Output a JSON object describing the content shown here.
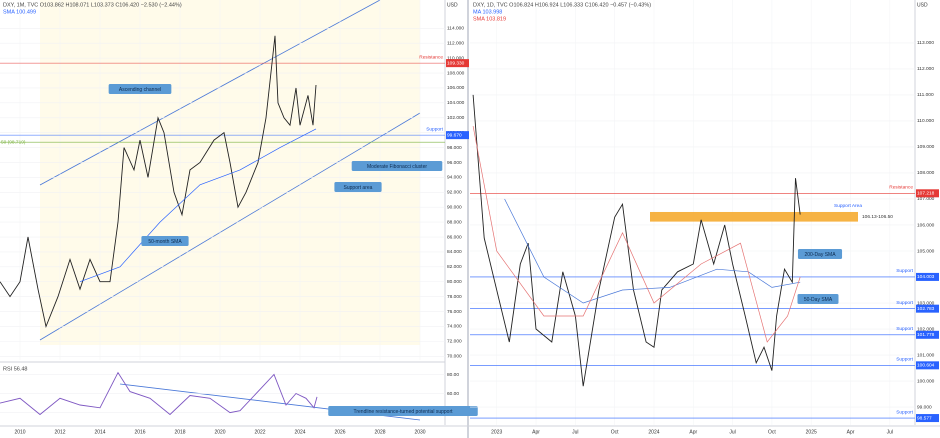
{
  "chart_data": [
    {
      "type": "line",
      "title": "DXY, 1M, TVC  O103.862 H108.071 L103.373 C106.420 −2.530 (−2.44%)",
      "subtitle": "SMA 100.499",
      "y_label": "USD",
      "xlim": [
        2009,
        2031.25
      ],
      "xticks": [
        2010,
        2012,
        2014,
        2016,
        2018,
        2020,
        2022,
        2024,
        2026,
        2028,
        2030
      ],
      "ylim": [
        69.5,
        117.8
      ],
      "yticks": [
        {
          "value": 70,
          "label": "70.000"
        },
        {
          "value": 72,
          "label": "72.000"
        },
        {
          "value": 74,
          "label": "74.000"
        },
        {
          "value": 76,
          "label": "76.000"
        },
        {
          "value": 78,
          "label": "78.000"
        },
        {
          "value": 80,
          "label": "80.000"
        },
        {
          "value": 82,
          "label": "82.000"
        },
        {
          "value": 84,
          "label": "84.000"
        },
        {
          "value": 86,
          "label": "86.000"
        },
        {
          "value": 88,
          "label": "88.000"
        },
        {
          "value": 90,
          "label": "90.000"
        },
        {
          "value": 92,
          "label": "92.000"
        },
        {
          "value": 94,
          "label": "94.000"
        },
        {
          "value": 96,
          "label": "96.000"
        },
        {
          "value": 98,
          "label": "98.000"
        },
        {
          "value": 100,
          "label": "100.000"
        },
        {
          "value": 102,
          "label": "102.000"
        },
        {
          "value": 104,
          "label": "104.000"
        },
        {
          "value": 106,
          "label": "106.000"
        },
        {
          "value": 108,
          "label": "108.000"
        },
        {
          "value": 110,
          "label": "110.000"
        },
        {
          "value": 112,
          "label": "112.000"
        },
        {
          "value": 114,
          "label": "114.000"
        }
      ],
      "series": [
        {
          "color": "#222222",
          "x": [
            2009.0,
            2009.5,
            2010.0,
            2010.4,
            2010.9,
            2011.3,
            2011.9,
            2012.5,
            2013.0,
            2013.5,
            2014.0,
            2014.5,
            2014.9,
            2015.2,
            2015.7,
            2016.0,
            2016.4,
            2016.9,
            2017.2,
            2017.7,
            2018.1,
            2018.5,
            2019.0,
            2019.7,
            2020.2,
            2020.5,
            2020.9,
            2021.3,
            2021.9,
            2022.3,
            2022.75,
            2022.9,
            2023.2,
            2023.5,
            2023.8,
            2024.0,
            2024.4,
            2024.65,
            2024.8
          ],
          "values": [
            80,
            78,
            80,
            86,
            79,
            74,
            78,
            83,
            79,
            83,
            80,
            80,
            88,
            98,
            95,
            99,
            94,
            102,
            100,
            92,
            89,
            95,
            96,
            99,
            100,
            96,
            90,
            92,
            96,
            102,
            113,
            104,
            102,
            101,
            106,
            101,
            105,
            101,
            106.4
          ]
        },
        {
          "color": "#2962ff",
          "x": [
            2013,
            2015,
            2017,
            2019,
            2021,
            2023,
            2024.8
          ],
          "values": [
            80,
            82,
            88,
            93,
            95,
            98,
            100.5
          ]
        }
      ],
      "levels": [
        {
          "value": 109.33,
          "label": "109.330",
          "name": "Resistance",
          "color": "#e53935"
        },
        {
          "value": 99.67,
          "label": "99.670",
          "name": "Support",
          "color": "#2962ff"
        }
      ],
      "fib_levels": [
        {
          "value": 98.719,
          "label": "50 (98.719)",
          "color": "#7cb342"
        }
      ],
      "annotations": [
        "Ascending channel",
        "Moderate Fibonacci cluster",
        "Support area",
        "50-month SMA"
      ]
    },
    {
      "type": "line",
      "title": "RSI 56.48",
      "xlim": [
        2009,
        2031.25
      ],
      "ylim": [
        27,
        91
      ],
      "yticks": [
        {
          "value": 40,
          "label": "40.00"
        },
        {
          "value": 60,
          "label": "60.00"
        },
        {
          "value": 80,
          "label": "80.00"
        }
      ],
      "series": [
        {
          "color": "#7e57c2",
          "x": [
            2009,
            2010,
            2011,
            2012,
            2013,
            2014,
            2014.9,
            2015.5,
            2016.5,
            2017.5,
            2018.5,
            2019.5,
            2020.5,
            2021,
            2022.7,
            2023.3,
            2023.8,
            2024.3,
            2024.7,
            2024.85
          ],
          "values": [
            50,
            55,
            38,
            55,
            48,
            45,
            82,
            62,
            55,
            38,
            58,
            55,
            40,
            42,
            80,
            48,
            60,
            55,
            45,
            56.48
          ]
        }
      ],
      "annotations": [
        "Trendline resistance-turned potential support"
      ]
    },
    {
      "type": "line",
      "title": "DXY, 1D, TVC  O106.824 H106.924 L106.333 C106.420 −0.457 (−0.43%)",
      "subtitle": "MA 103.998",
      "subtitle2": "SMA 103.819",
      "y_label": "USD",
      "xlim": [
        2022.83,
        2025.66
      ],
      "xticks": [
        2023,
        {
          "value": 2023.25,
          "label": "Apr"
        },
        {
          "value": 2023.5,
          "label": "Jul"
        },
        {
          "value": 2023.75,
          "label": "Oct"
        },
        2024,
        {
          "value": 2024.25,
          "label": "Apr"
        },
        {
          "value": 2024.5,
          "label": "Jul"
        },
        {
          "value": 2024.75,
          "label": "Oct"
        },
        2025,
        {
          "value": 2025.25,
          "label": "Apr"
        },
        {
          "value": 2025.5,
          "label": "Jul"
        }
      ],
      "ylim": [
        98.31,
        114.65
      ],
      "yticks": [
        {
          "value": 99,
          "label": "99.000"
        },
        {
          "value": 100,
          "label": "100.000"
        },
        {
          "value": 101,
          "label": "101.000"
        },
        {
          "value": 102,
          "label": "102.000"
        },
        {
          "value": 103,
          "label": "103.000"
        },
        {
          "value": 104,
          "label": "104.000"
        },
        {
          "value": 105,
          "label": "105.000"
        },
        {
          "value": 106,
          "label": "106.000"
        },
        {
          "value": 107,
          "label": "107.000"
        },
        {
          "value": 108,
          "label": "108.000"
        },
        {
          "value": 109,
          "label": "109.000"
        },
        {
          "value": 110,
          "label": "110.000"
        },
        {
          "value": 111,
          "label": "111.000"
        },
        {
          "value": 112,
          "label": "112.000"
        },
        {
          "value": 113,
          "label": "113.000"
        }
      ],
      "series": [
        {
          "color": "#222222",
          "x": [
            2022.85,
            2022.92,
            2023.0,
            2023.08,
            2023.15,
            2023.2,
            2023.25,
            2023.35,
            2023.42,
            2023.5,
            2023.55,
            2023.65,
            2023.75,
            2023.8,
            2023.87,
            2023.95,
            2024.0,
            2024.05,
            2024.15,
            2024.25,
            2024.3,
            2024.38,
            2024.45,
            2024.5,
            2024.58,
            2024.65,
            2024.7,
            2024.75,
            2024.78,
            2024.83,
            2024.88,
            2024.9,
            2024.93
          ],
          "values": [
            111,
            105.5,
            103.5,
            101.5,
            104.5,
            105.3,
            102,
            101.5,
            104.2,
            102.5,
            99.8,
            103.5,
            106.3,
            106.8,
            103.5,
            101.5,
            101.3,
            103.5,
            104.2,
            104.5,
            106.2,
            104.5,
            106,
            104.5,
            102.5,
            100.7,
            101.3,
            100.4,
            102.5,
            104.3,
            103.8,
            107.8,
            106.4
          ]
        },
        {
          "color": "#4a78d8",
          "x": [
            2023.05,
            2023.3,
            2023.55,
            2023.8,
            2024.1,
            2024.4,
            2024.6,
            2024.75,
            2024.93
          ],
          "values": [
            107,
            104,
            103,
            103.5,
            103.6,
            104.3,
            104.2,
            103.6,
            103.8
          ]
        },
        {
          "color": "#e57373",
          "x": [
            2022.85,
            2023.0,
            2023.3,
            2023.55,
            2023.8,
            2024.0,
            2024.3,
            2024.55,
            2024.72,
            2024.85,
            2024.93
          ],
          "values": [
            109.8,
            105,
            102.5,
            102.5,
            105.7,
            103,
            104.5,
            105.3,
            101.5,
            102.5,
            104
          ]
        }
      ],
      "levels": [
        {
          "value": 107.218,
          "label": "107.218",
          "name": "Resistance",
          "color": "#e53935"
        },
        {
          "value": 104.003,
          "label": "104.003",
          "name": "Support",
          "color": "#2962ff"
        },
        {
          "value": 102.783,
          "label": "102.783",
          "name": "Support",
          "color": "#2962ff"
        },
        {
          "value": 101.778,
          "label": "101.778",
          "name": "Support",
          "color": "#2962ff"
        },
        {
          "value": 100.604,
          "label": "100.604",
          "name": "Support",
          "color": "#2962ff"
        },
        {
          "value": 98.577,
          "label": "98.577",
          "name": "Support",
          "color": "#2962ff"
        }
      ],
      "zone": {
        "from": 106.13,
        "to": 106.5,
        "name": "Support Area",
        "label": "106.13-106.50",
        "color": "#f5a623"
      },
      "annotations": [
        "200-Day SMA",
        "50-Day SMA"
      ]
    }
  ]
}
